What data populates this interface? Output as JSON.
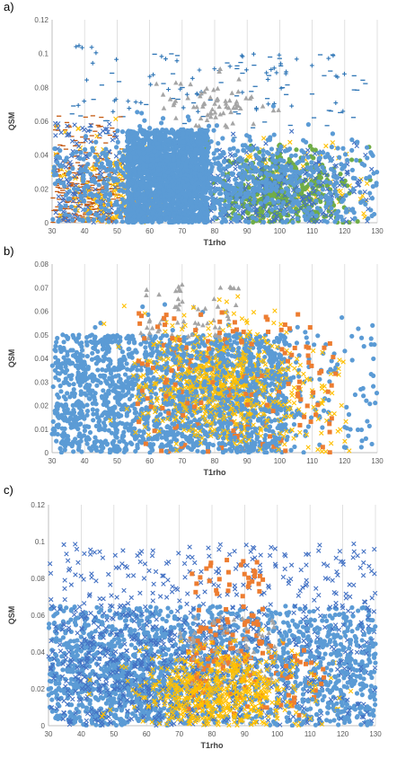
{
  "panels": [
    {
      "letter": "a)",
      "chart_data": {
        "type": "scatter",
        "xlabel": "T1rho",
        "ylabel": "QSM",
        "xlim": [
          30,
          130
        ],
        "ylim": [
          0,
          0.12
        ],
        "xticks": [
          30,
          40,
          50,
          60,
          70,
          80,
          90,
          100,
          110,
          120,
          130
        ],
        "yticks": [
          0,
          0.02,
          0.04,
          0.06,
          0.08,
          0.1,
          0.12
        ],
        "ytick_labels": [
          "0",
          "0.02",
          "0.04",
          "0.06",
          "0.08",
          "0.1",
          "0.12"
        ],
        "grid": "vertical",
        "series": [
          {
            "marker": "plus",
            "color": "#2E75B6",
            "clusters": [
              {
                "cx": [
                  38,
                  125
                ],
                "cy": [
                  0.065,
                  0.1
                ],
                "n": 60,
                "mode": "uniform"
              },
              {
                "cx": [
                  37,
                  45
                ],
                "cy": [
                  0.1,
                  0.106
                ],
                "n": 5,
                "mode": "uniform"
              }
            ]
          },
          {
            "marker": "dash",
            "color": "#2E75B6",
            "clusters": [
              {
                "cx": [
                  35,
                  128
                ],
                "cy": [
                  0.05,
                  0.1
                ],
                "n": 70,
                "mode": "uniform"
              }
            ]
          },
          {
            "marker": "dash",
            "color": "#C55A11",
            "clusters": [
              {
                "cx": 42,
                "cy": 0.015,
                "sx": 7,
                "sy": 0.012,
                "n": 260
              },
              {
                "cx": [
                  31,
                  52
                ],
                "cy": [
                  0.0,
                  0.065
                ],
                "n": 120,
                "mode": "uniform"
              }
            ]
          },
          {
            "marker": "x",
            "color": "#FFC000",
            "clusters": [
              {
                "cx": 50,
                "cy": 0.02,
                "sx": 10,
                "sy": 0.014,
                "n": 200
              },
              {
                "cx": [
                  90,
                  128
                ],
                "cy": [
                  0.0,
                  0.05
                ],
                "n": 90,
                "mode": "uniform"
              }
            ]
          },
          {
            "marker": "triangle",
            "color": "#A5A5A5",
            "clusters": [
              {
                "cx": 80,
                "cy": 0.07,
                "sx": 8,
                "sy": 0.008,
                "n": 70
              }
            ]
          },
          {
            "marker": "dot",
            "color": "#70AD47",
            "clusters": [
              {
                "cx": 100,
                "cy": 0.018,
                "sx": 11,
                "sy": 0.012,
                "n": 480
              }
            ]
          },
          {
            "marker": "x",
            "color": "#4472C4",
            "clusters": [
              {
                "cx": 95,
                "cy": 0.02,
                "sx": 18,
                "sy": 0.014,
                "n": 380
              },
              {
                "cx": [
                  31,
                  50
                ],
                "cy": [
                  0.0,
                  0.06
                ],
                "n": 120,
                "mode": "uniform"
              }
            ]
          },
          {
            "marker": "dot",
            "color": "#5B9BD5",
            "clusters": [
              {
                "cx": [
                  53,
                  78
                ],
                "cy": [
                  0.0,
                  0.055
                ],
                "n": 1700,
                "mode": "uniform"
              },
              {
                "cx": 75,
                "cy": 0.025,
                "sx": 22,
                "sy": 0.015,
                "n": 700
              },
              {
                "cx": [
                  30,
                  130
                ],
                "cy": [
                  0.0,
                  0.045
                ],
                "n": 350,
                "mode": "uniform"
              }
            ]
          }
        ]
      }
    },
    {
      "letter": "b)",
      "chart_data": {
        "type": "scatter",
        "xlabel": "T1rho",
        "ylabel": "QSM",
        "xlim": [
          30,
          130
        ],
        "ylim": [
          0,
          0.08
        ],
        "xticks": [
          30,
          40,
          50,
          60,
          70,
          80,
          90,
          100,
          110,
          120,
          130
        ],
        "yticks": [
          0,
          0.01,
          0.02,
          0.03,
          0.04,
          0.05,
          0.06,
          0.07,
          0.08
        ],
        "ytick_labels": [
          "0",
          "0.01",
          "0.02",
          "0.03",
          "0.04",
          "0.05",
          "0.06",
          "0.07",
          "0.08"
        ],
        "grid": "vertical",
        "series": [
          {
            "marker": "dot",
            "color": "#5B9BD5",
            "clusters": [
              {
                "cx": [
                  30,
                  102
                ],
                "cy": [
                  0.0,
                  0.05
                ],
                "n": 1500,
                "mode": "uniform"
              },
              {
                "cx": 75,
                "cy": 0.025,
                "sx": 25,
                "sy": 0.013,
                "n": 400
              },
              {
                "cx": [
                  100,
                  130
                ],
                "cy": [
                  0.0,
                  0.05
                ],
                "n": 60,
                "mode": "uniform"
              }
            ]
          },
          {
            "marker": "triangle",
            "color": "#A5A5A5",
            "clusters": [
              {
                "cx": [
                  56,
                  88
                ],
                "cy": [
                  0.045,
                  0.073
                ],
                "n": 60,
                "mode": "uniform"
              }
            ]
          },
          {
            "marker": "x",
            "color": "#FFC000",
            "clusters": [
              {
                "cx": 80,
                "cy": 0.03,
                "sx": 12,
                "sy": 0.012,
                "n": 600
              },
              {
                "cx": [
                  85,
                  122
                ],
                "cy": [
                  0.0,
                  0.04
                ],
                "n": 90,
                "mode": "uniform"
              }
            ]
          },
          {
            "marker": "square",
            "color": "#ED7D31",
            "clusters": [
              {
                "cx": [
                  56,
                  118
                ],
                "cy": [
                  0.0,
                  0.06
                ],
                "n": 140,
                "mode": "uniform"
              }
            ]
          },
          {
            "marker": "dot",
            "color": "#5B9BD5",
            "clusters": [
              {
                "cx": [
                  65,
                  100
                ],
                "cy": [
                  0.0,
                  0.05
                ],
                "n": 220,
                "mode": "uniform"
              }
            ]
          }
        ]
      }
    },
    {
      "letter": "c)",
      "chart_data": {
        "type": "scatter",
        "xlabel": "T1rho",
        "ylabel": "QSM",
        "xlim": [
          30,
          130
        ],
        "ylim": [
          0,
          0.12
        ],
        "xticks": [
          30,
          40,
          50,
          60,
          70,
          80,
          90,
          100,
          110,
          120,
          130
        ],
        "yticks": [
          0,
          0.02,
          0.04,
          0.06,
          0.08,
          0.1,
          0.12
        ],
        "ytick_labels": [
          "0",
          "0.02",
          "0.04",
          "0.06",
          "0.08",
          "0.1",
          "0.12"
        ],
        "grid": "vertical",
        "series": [
          {
            "marker": "dot",
            "color": "#5B9BD5",
            "clusters": [
              {
                "cx": [
                  30,
                  130
                ],
                "cy": [
                  0.0,
                  0.065
                ],
                "n": 1300,
                "mode": "uniform"
              },
              {
                "cx": 55,
                "cy": 0.025,
                "sx": 15,
                "sy": 0.015,
                "n": 500
              }
            ]
          },
          {
            "marker": "x",
            "color": "#4472C4",
            "clusters": [
              {
                "cx": [
                  30,
                  130
                ],
                "cy": [
                  0.0,
                  0.1
                ],
                "n": 650,
                "mode": "uniform"
              },
              {
                "cx": 60,
                "cy": 0.03,
                "sx": 18,
                "sy": 0.02,
                "n": 250
              }
            ]
          },
          {
            "marker": "square",
            "color": "#ED7D31",
            "clusters": [
              {
                "cx": [
                  72,
                  96
                ],
                "cy": [
                  0.03,
                  0.09
                ],
                "n": 90,
                "mode": "uniform"
              },
              {
                "cx": [
                  72,
                  115
                ],
                "cy": [
                  0.005,
                  0.045
                ],
                "n": 80,
                "mode": "uniform"
              }
            ]
          },
          {
            "marker": "triangle",
            "color": "#A5A5A5",
            "clusters": [
              {
                "cx": [
                  70,
                  100
                ],
                "cy": [
                  0.02,
                  0.06
                ],
                "n": 80,
                "mode": "uniform"
              }
            ]
          },
          {
            "marker": "x",
            "color": "#FFC000",
            "clusters": [
              {
                "cx": 82,
                "cy": 0.018,
                "sx": 12,
                "sy": 0.011,
                "n": 550
              }
            ]
          },
          {
            "marker": "dot",
            "color": "#5B9BD5",
            "clusters": [
              {
                "cx": [
                  100,
                  130
                ],
                "cy": [
                  0.0,
                  0.06
                ],
                "n": 120,
                "mode": "uniform"
              }
            ]
          }
        ]
      }
    }
  ]
}
